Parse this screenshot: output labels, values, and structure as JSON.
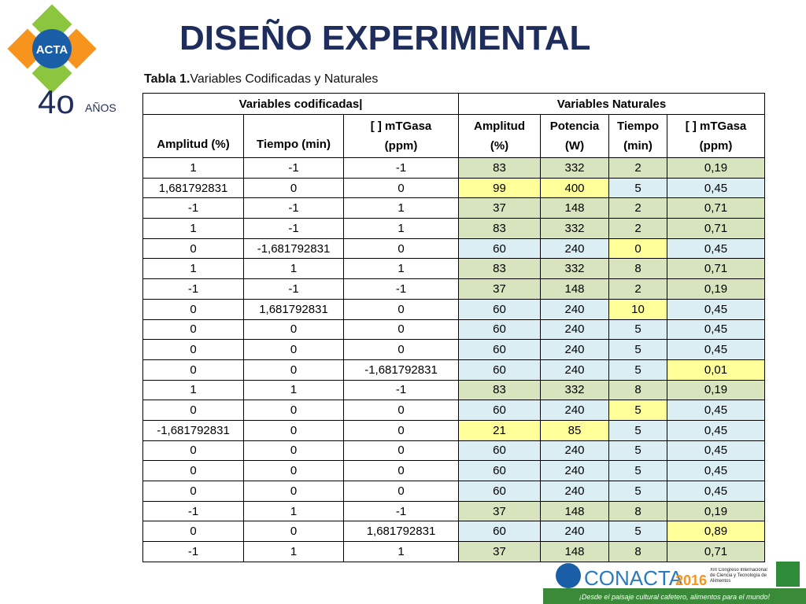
{
  "header": {
    "title": "DISEÑO EXPERIMENTAL",
    "caption_label": "Tabla 1.",
    "caption": "Variables Codificadas y Naturales"
  },
  "logo": {
    "org": "ACTA",
    "years": "4o",
    "years_word": "AÑOS"
  },
  "table": {
    "groups": [
      "Variables codificadas|",
      "Variables Naturales"
    ],
    "columns": [
      [
        "Amplitud (%)"
      ],
      [
        "Tiempo (min)"
      ],
      [
        "[ ] mTGasa",
        "(ppm)"
      ],
      [
        "Amplitud",
        "(%)"
      ],
      [
        "Potencia",
        "(W)"
      ],
      [
        "Tiempo",
        "(min)"
      ],
      [
        "[ ] mTGasa",
        "(ppm)"
      ]
    ],
    "rows": [
      [
        "1",
        "-1",
        "-1",
        "83",
        "332",
        "2",
        "0,19"
      ],
      [
        "1,681792831",
        "0",
        "0",
        "99",
        "400",
        "5",
        "0,45"
      ],
      [
        "-1",
        "-1",
        "1",
        "37",
        "148",
        "2",
        "0,71"
      ],
      [
        "1",
        "-1",
        "1",
        "83",
        "332",
        "2",
        "0,71"
      ],
      [
        "0",
        "-1,681792831",
        "0",
        "60",
        "240",
        "0",
        "0,45"
      ],
      [
        "1",
        "1",
        "1",
        "83",
        "332",
        "8",
        "0,71"
      ],
      [
        "-1",
        "-1",
        "-1",
        "37",
        "148",
        "2",
        "0,19"
      ],
      [
        "0",
        "1,681792831",
        "0",
        "60",
        "240",
        "10",
        "0,45"
      ],
      [
        "0",
        "0",
        "0",
        "60",
        "240",
        "5",
        "0,45"
      ],
      [
        "0",
        "0",
        "0",
        "60",
        "240",
        "5",
        "0,45"
      ],
      [
        "0",
        "0",
        "-1,681792831",
        "60",
        "240",
        "5",
        "0,01"
      ],
      [
        "1",
        "1",
        "-1",
        "83",
        "332",
        "8",
        "0,19"
      ],
      [
        "0",
        "0",
        "0",
        "60",
        "240",
        "5",
        "0,45"
      ],
      [
        "-1,681792831",
        "0",
        "0",
        "21",
        "85",
        "5",
        "0,45"
      ],
      [
        "0",
        "0",
        "0",
        "60",
        "240",
        "5",
        "0,45"
      ],
      [
        "0",
        "0",
        "0",
        "60",
        "240",
        "5",
        "0,45"
      ],
      [
        "0",
        "0",
        "0",
        "60",
        "240",
        "5",
        "0,45"
      ],
      [
        "-1",
        "1",
        "-1",
        "37",
        "148",
        "8",
        "0,19"
      ],
      [
        "0",
        "0",
        "1,681792831",
        "60",
        "240",
        "5",
        "0,89"
      ],
      [
        "-1",
        "1",
        "1",
        "37",
        "148",
        "8",
        "0,71"
      ]
    ],
    "fills": [
      [
        "#d7e4bd",
        "#d7e4bd",
        "#d7e4bd",
        "#d7e4bd"
      ],
      [
        "#ffff99",
        "#ffff99",
        "#dbeef4",
        "#dbeef4"
      ],
      [
        "#d7e4bd",
        "#d7e4bd",
        "#d7e4bd",
        "#d7e4bd"
      ],
      [
        "#d7e4bd",
        "#d7e4bd",
        "#d7e4bd",
        "#d7e4bd"
      ],
      [
        "#dbeef4",
        "#dbeef4",
        "#ffff99",
        "#dbeef4"
      ],
      [
        "#d7e4bd",
        "#d7e4bd",
        "#d7e4bd",
        "#d7e4bd"
      ],
      [
        "#d7e4bd",
        "#d7e4bd",
        "#d7e4bd",
        "#d7e4bd"
      ],
      [
        "#dbeef4",
        "#dbeef4",
        "#ffff99",
        "#dbeef4"
      ],
      [
        "#dbeef4",
        "#dbeef4",
        "#dbeef4",
        "#dbeef4"
      ],
      [
        "#dbeef4",
        "#dbeef4",
        "#dbeef4",
        "#dbeef4"
      ],
      [
        "#dbeef4",
        "#dbeef4",
        "#dbeef4",
        "#ffff99"
      ],
      [
        "#d7e4bd",
        "#d7e4bd",
        "#d7e4bd",
        "#d7e4bd"
      ],
      [
        "#dbeef4",
        "#dbeef4",
        "#ffff99",
        "#dbeef4"
      ],
      [
        "#ffff99",
        "#ffff99",
        "#dbeef4",
        "#dbeef4"
      ],
      [
        "#dbeef4",
        "#dbeef4",
        "#dbeef4",
        "#dbeef4"
      ],
      [
        "#dbeef4",
        "#dbeef4",
        "#dbeef4",
        "#dbeef4"
      ],
      [
        "#dbeef4",
        "#dbeef4",
        "#dbeef4",
        "#dbeef4"
      ],
      [
        "#d7e4bd",
        "#d7e4bd",
        "#d7e4bd",
        "#d7e4bd"
      ],
      [
        "#dbeef4",
        "#dbeef4",
        "#dbeef4",
        "#ffff99"
      ],
      [
        "#d7e4bd",
        "#d7e4bd",
        "#d7e4bd",
        "#d7e4bd"
      ]
    ]
  },
  "footer": {
    "event": "CONACTA",
    "year": "2016",
    "edition": "XIII Congreso Internacional de Ciencia y Tecnología de Alimentos",
    "slogan": "¡Desde el paisaje cultural cafetero, alimentos para el mundo!"
  }
}
